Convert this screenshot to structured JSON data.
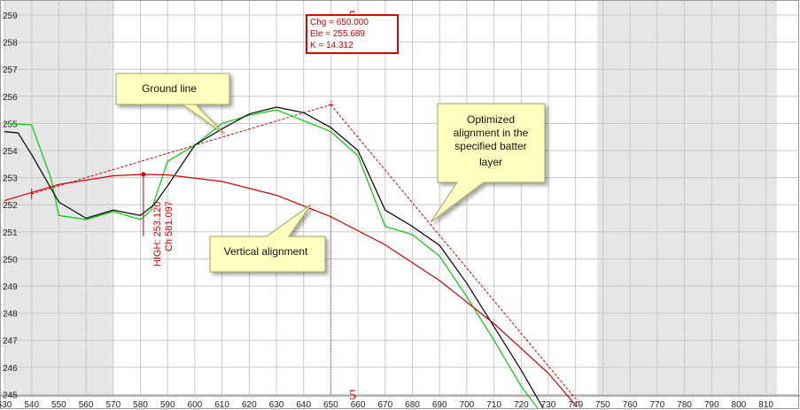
{
  "chart_data": {
    "type": "line",
    "x_ticks": [
      530,
      540,
      550,
      560,
      570,
      580,
      590,
      600,
      610,
      620,
      630,
      640,
      650,
      660,
      670,
      680,
      690,
      700,
      710,
      720,
      730,
      740,
      750,
      760,
      770,
      780,
      790,
      800,
      810
    ],
    "y_ticks": [
      245,
      246,
      247,
      248,
      249,
      250,
      251,
      252,
      253,
      254,
      255,
      256,
      257,
      258,
      259
    ],
    "xlim": [
      530,
      814
    ],
    "ylim": [
      245,
      259.8
    ],
    "grid": true,
    "shaded_regions": [
      [
        530,
        570
      ],
      [
        748,
        814
      ]
    ],
    "series": [
      {
        "name": "Ground line",
        "color": "#00cc00",
        "points": [
          [
            530,
            255.0
          ],
          [
            540,
            254.95
          ],
          [
            547,
            253.0
          ],
          [
            550,
            251.6
          ],
          [
            560,
            251.45
          ],
          [
            570,
            251.75
          ],
          [
            580,
            251.45
          ],
          [
            584,
            251.8
          ],
          [
            590,
            253.6
          ],
          [
            600,
            254.2
          ],
          [
            610,
            255.0
          ],
          [
            620,
            255.3
          ],
          [
            630,
            255.5
          ],
          [
            640,
            255.1
          ],
          [
            650,
            254.7
          ],
          [
            660,
            253.8
          ],
          [
            670,
            251.2
          ],
          [
            680,
            250.9
          ],
          [
            690,
            250.1
          ],
          [
            700,
            248.6
          ],
          [
            710,
            247.0
          ],
          [
            720,
            245.3
          ],
          [
            726,
            244.5
          ]
        ]
      },
      {
        "name": "Optimized alignment in the specified batter layer",
        "color": "#000000",
        "points": [
          [
            530,
            254.7
          ],
          [
            535,
            254.65
          ],
          [
            540,
            253.85
          ],
          [
            550,
            252.1
          ],
          [
            560,
            251.5
          ],
          [
            570,
            251.8
          ],
          [
            580,
            251.6
          ],
          [
            585,
            252.0
          ],
          [
            590,
            252.7
          ],
          [
            600,
            254.2
          ],
          [
            610,
            254.8
          ],
          [
            620,
            255.35
          ],
          [
            630,
            255.6
          ],
          [
            640,
            255.4
          ],
          [
            650,
            254.85
          ],
          [
            660,
            254.0
          ],
          [
            670,
            251.8
          ],
          [
            680,
            251.2
          ],
          [
            690,
            250.5
          ],
          [
            700,
            249.1
          ],
          [
            710,
            247.5
          ],
          [
            720,
            245.9
          ],
          [
            728,
            244.5
          ]
        ]
      },
      {
        "name": "Vertical alignment",
        "color": "#cc0000",
        "points": [
          [
            530,
            252.15
          ],
          [
            550,
            252.75
          ],
          [
            570,
            253.07
          ],
          [
            581.1,
            253.12
          ],
          [
            590,
            253.1
          ],
          [
            610,
            252.86
          ],
          [
            630,
            252.35
          ],
          [
            650,
            251.56
          ],
          [
            670,
            250.52
          ],
          [
            690,
            249.2
          ],
          [
            710,
            247.61
          ],
          [
            730,
            245.78
          ],
          [
            740,
            244.6
          ]
        ]
      }
    ],
    "tangent_lines": [
      {
        "from": [
          540,
          252.4
        ],
        "to": [
          650,
          255.689
        ]
      },
      {
        "from": [
          650,
          255.689
        ],
        "to": [
          742,
          244.6
        ]
      }
    ],
    "pvi": {
      "chainage": 650,
      "elevation": 255.689,
      "label": "5"
    },
    "high_point": {
      "chainage": 581.1,
      "elevation": 253.12
    },
    "info_box": {
      "chg": "Chg = 650.000",
      "ele": "Ele = 255.689",
      "k": "K = 14.312"
    },
    "high_label": "HIGH: 253.120",
    "ch_label": "Ch 581.097",
    "pvi_label_top": "5",
    "pvi_label_bottom": "5"
  },
  "callouts": {
    "ground_line": "Ground line",
    "vertical_alignment": "Vertical alignment",
    "optimized_line1": "Optimized",
    "optimized_line2": "alignment in the",
    "optimized_line3": "specified batter",
    "optimized_line4": "layer"
  },
  "colors": {
    "grid": "#c8c8c8",
    "shade": "#e6e6e6",
    "callout_fill": "#ffffc0",
    "callout_stroke": "#a0a060",
    "alignment": "#cc0000",
    "ground": "#00cc00",
    "optimized": "#000000"
  }
}
